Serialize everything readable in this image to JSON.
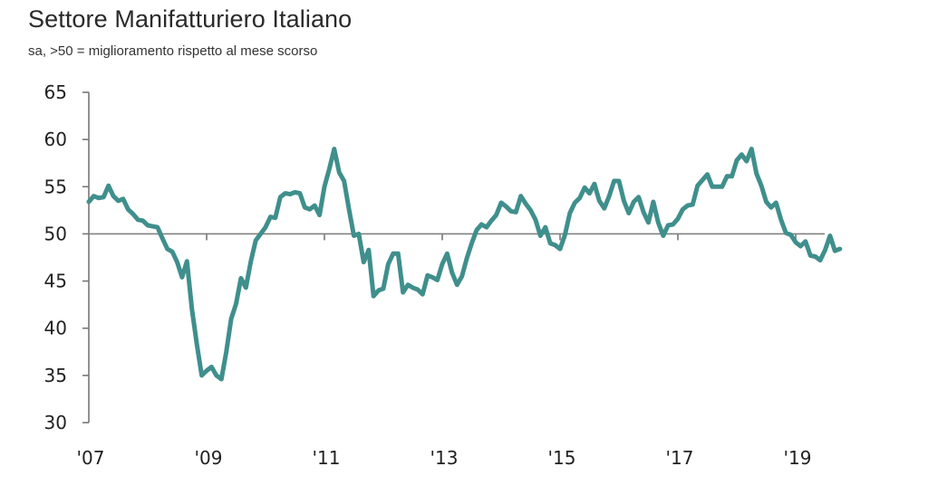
{
  "chart_data": {
    "type": "line",
    "title": "Settore Manifatturiero Italiano",
    "subtitle": "sa, >50 = miglioramento rispetto al mese scorso",
    "xlabel": "",
    "ylabel": "",
    "ylim": [
      30,
      65
    ],
    "yticks": [
      30,
      35,
      40,
      45,
      50,
      55,
      60,
      65
    ],
    "ytick_labels": [
      "30",
      "35",
      "40",
      "45",
      "50",
      "55",
      "60",
      "65"
    ],
    "xticks": [
      2007,
      2009,
      2011,
      2013,
      2015,
      2017,
      2019
    ],
    "xtick_labels": [
      "'07",
      "'09",
      "'11",
      "'13",
      "'15",
      "'17",
      "'19"
    ],
    "xlim": [
      2007,
      2019.75
    ],
    "reference_line": 50,
    "grid": false,
    "legend": "none",
    "line_color": "#3f8f8c",
    "series": [
      {
        "name": "PMI Settore Manifatturiero Italiano",
        "start": "2007-01",
        "frequency": "monthly",
        "values": [
          53.4,
          54.0,
          53.8,
          53.9,
          55.1,
          54.0,
          53.5,
          53.7,
          52.6,
          52.1,
          51.5,
          51.4,
          50.9,
          50.8,
          50.7,
          49.5,
          48.4,
          48.1,
          47.0,
          45.4,
          47.1,
          42.0,
          38.3,
          35.0,
          35.5,
          35.9,
          35.0,
          34.6,
          37.5,
          41.0,
          42.6,
          45.3,
          44.3,
          47.1,
          49.3,
          50.0,
          50.7,
          51.8,
          51.7,
          53.9,
          54.3,
          54.2,
          54.4,
          54.3,
          52.8,
          52.6,
          53.0,
          52.0,
          55.0,
          56.9,
          59.0,
          56.5,
          55.6,
          52.6,
          49.8,
          50.0,
          47.0,
          48.3,
          43.4,
          44.0,
          44.2,
          46.8,
          47.9,
          47.9,
          43.8,
          44.6,
          44.3,
          44.1,
          43.6,
          45.6,
          45.4,
          45.1,
          46.8,
          47.9,
          45.9,
          44.6,
          45.5,
          47.4,
          49.0,
          50.4,
          51.0,
          50.7,
          51.4,
          52.0,
          53.3,
          52.9,
          52.4,
          52.3,
          54.0,
          53.2,
          52.5,
          51.5,
          49.8,
          50.7,
          49.0,
          48.8,
          48.4,
          49.9,
          52.2,
          53.3,
          53.8,
          54.9,
          54.3,
          55.3,
          53.5,
          52.7,
          54.0,
          55.6,
          55.6,
          53.5,
          52.2,
          53.4,
          53.9,
          52.3,
          51.2,
          53.4,
          51.2,
          49.8,
          50.9,
          51.0,
          51.6,
          52.6,
          53.0,
          53.1,
          55.1,
          55.7,
          56.3,
          55.0,
          55.0,
          55.0,
          56.1,
          56.1,
          57.8,
          58.4,
          57.7,
          59.0,
          56.4,
          55.1,
          53.4,
          52.8,
          53.3,
          51.5,
          50.1,
          49.9,
          49.1,
          48.7,
          49.2,
          47.7,
          47.6,
          47.2,
          48.3,
          49.8,
          48.2,
          48.4
        ]
      }
    ]
  }
}
